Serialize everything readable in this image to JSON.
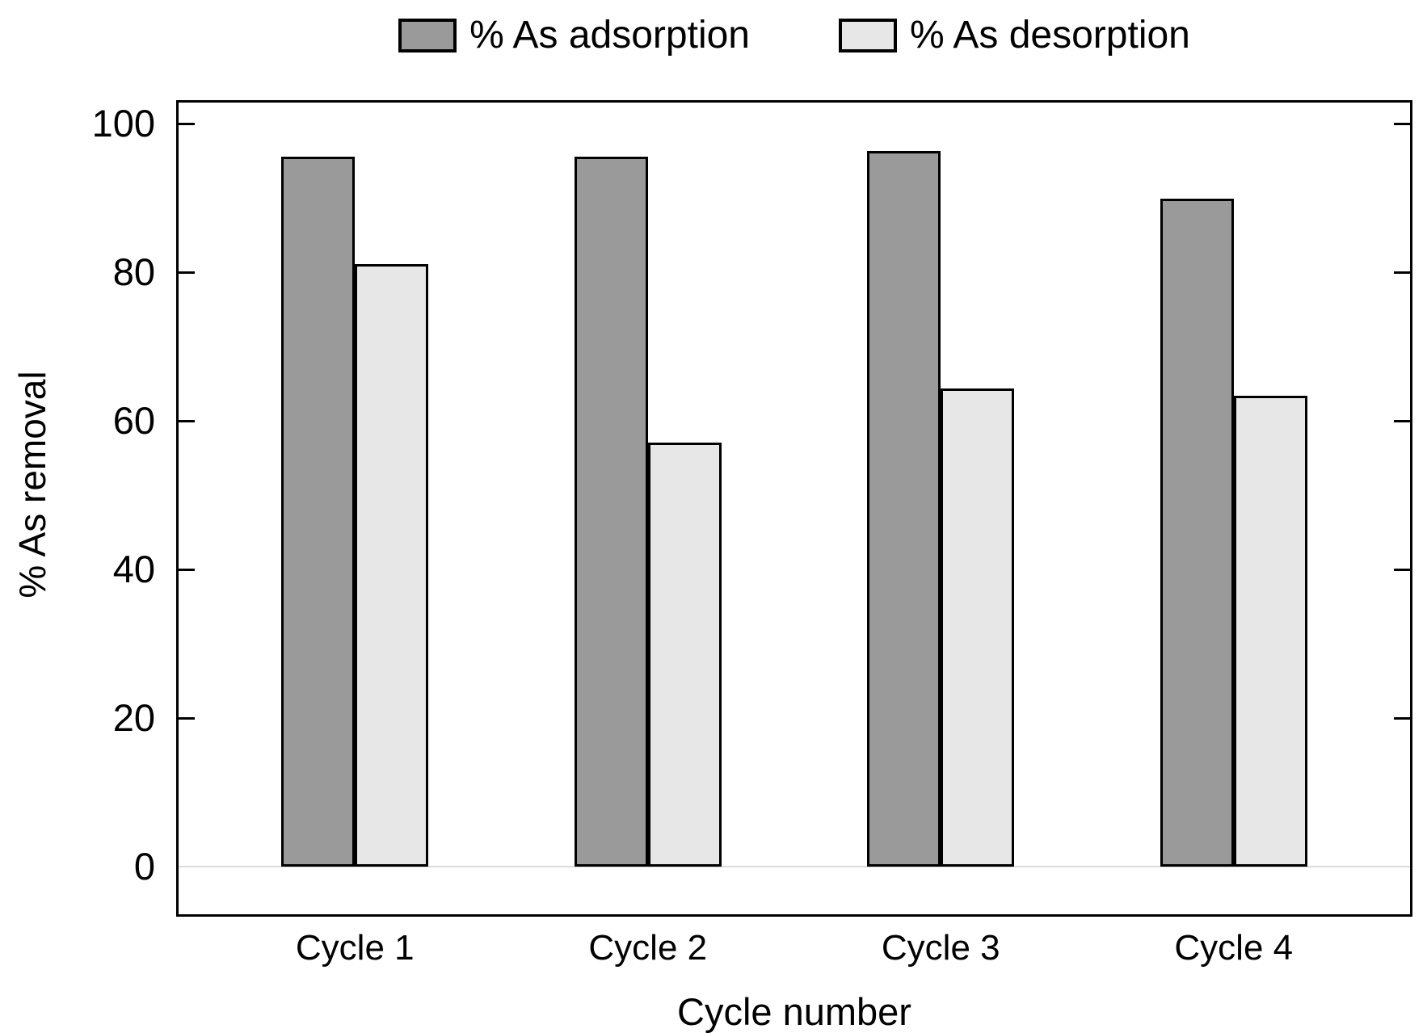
{
  "chart_data": {
    "type": "bar",
    "title": "",
    "categories": [
      "Cycle 1",
      "Cycle 2",
      "Cycle 3",
      "Cycle 4"
    ],
    "series": [
      {
        "name": "% As adsorption",
        "color": "#9a9a9a",
        "values": [
          95.5,
          95.5,
          96.3,
          89.9
        ]
      },
      {
        "name": "% As desorption",
        "color": "#e7e7e7",
        "values": [
          81.1,
          57.1,
          64.3,
          63.4
        ]
      }
    ],
    "xlabel": "Cycle number",
    "ylabel": "% As removal",
    "ylim": [
      0,
      100
    ],
    "yticks": [
      0,
      20,
      40,
      60,
      80,
      100
    ],
    "legend_position": "top",
    "grid": false,
    "baseline_value": 0
  },
  "colors": {
    "bar_outline": "#000000",
    "axis_frame": "#000000",
    "zero_baseline": "#dcdcdc",
    "background": "#ffffff"
  }
}
